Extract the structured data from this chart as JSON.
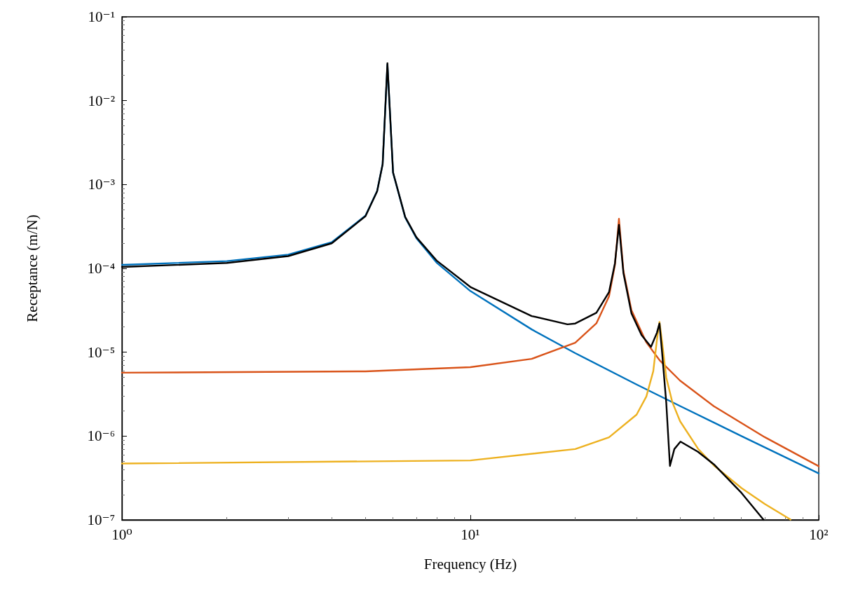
{
  "chart_data": {
    "type": "line",
    "xlabel": "Frequency (Hz)",
    "ylabel": "Receptance (m/N)",
    "log": "xy",
    "marker": "none",
    "line_style": "solid",
    "xlim": [
      1,
      100
    ],
    "ylim": [
      1e-07,
      0.1
    ],
    "xticks": [
      {
        "value": 1,
        "label": "10⁰"
      },
      {
        "value": 10,
        "label": "10¹"
      },
      {
        "value": 100,
        "label": "10²"
      }
    ],
    "yticks": [
      {
        "value": 1e-07,
        "label": "10⁻⁷"
      },
      {
        "value": 1e-06,
        "label": "10⁻⁶"
      },
      {
        "value": 1e-05,
        "label": "10⁻⁵"
      },
      {
        "value": 0.0001,
        "label": "10⁻⁴"
      },
      {
        "value": 0.001,
        "label": "10⁻³"
      },
      {
        "value": 0.01,
        "label": "10⁻²"
      },
      {
        "value": 0.1,
        "label": "10⁻¹"
      }
    ],
    "series": [
      {
        "color": "#0072bd",
        "x": [
          1,
          2,
          3,
          4,
          5,
          5.4,
          5.6,
          5.78,
          6,
          6.5,
          7,
          8,
          10,
          15,
          20,
          30,
          40,
          60,
          100
        ],
        "values": [
          0.00011,
          0.000122,
          0.000146,
          0.000205,
          0.000425,
          0.00084,
          0.00175,
          0.027,
          0.00138,
          0.000404,
          0.000229,
          0.000117,
          5.37e-05,
          1.87e-05,
          9.75e-06,
          4.12e-06,
          2.28e-06,
          1e-06,
          3.59e-07
        ]
      },
      {
        "color": "#d95319",
        "x": [
          1,
          5,
          10,
          15,
          20,
          23,
          25,
          26,
          26.7,
          27.5,
          29,
          32,
          35,
          40,
          50,
          70,
          100
        ],
        "values": [
          5.7e-06,
          5.91e-06,
          6.63e-06,
          8.33e-06,
          1.3e-05,
          2.21e-05,
          4.63e-05,
          0.00011,
          0.00039,
          9.3e-05,
          3.17e-05,
          1.31e-05,
          7.94e-06,
          4.58e-06,
          2.27e-06,
          9.7e-07,
          4.37e-07
        ]
      },
      {
        "color": "#edb120",
        "x": [
          1,
          10,
          20,
          25,
          30,
          32,
          33.5,
          34.3,
          34.9,
          35.5,
          36.5,
          38,
          40,
          45,
          50,
          60,
          70,
          83
        ],
        "values": [
          4.7e-07,
          5.12e-07,
          7e-07,
          9.65e-07,
          1.8e-06,
          2.96e-06,
          5.95e-06,
          1.38e-05,
          2.3e-05,
          1.34e-05,
          5e-06,
          2.53e-06,
          1.5e-06,
          7.09e-07,
          4.46e-07,
          2.4e-07,
          1.55e-07,
          1.01e-07
        ]
      },
      {
        "color": "#000000",
        "x": [
          1,
          2,
          3,
          4,
          5,
          5.4,
          5.6,
          5.78,
          6,
          6.5,
          7,
          8,
          10,
          15,
          19,
          20,
          23,
          25,
          26,
          26.7,
          27.5,
          29,
          31,
          33,
          34.3,
          34.9,
          35.5,
          36.5,
          37.4,
          38.5,
          40.1,
          45,
          50,
          60,
          69.5
        ],
        "values": [
          0.000104,
          0.000116,
          0.00014,
          0.000199,
          0.000419,
          0.00083,
          0.00174,
          0.028,
          0.00139,
          0.00041,
          0.000235,
          0.000124,
          6e-05,
          2.7e-05,
          2.15e-05,
          2.2e-05,
          2.95e-05,
          5.2e-05,
          0.000115,
          0.00033,
          8.8e-05,
          2.9e-05,
          1.6e-05,
          1.16e-05,
          1.7e-05,
          2.2e-05,
          1e-05,
          2.5e-06,
          4.4e-07,
          7e-07,
          8.6e-07,
          6.5e-07,
          4.6e-07,
          2.1e-07,
          1e-07
        ]
      }
    ]
  }
}
